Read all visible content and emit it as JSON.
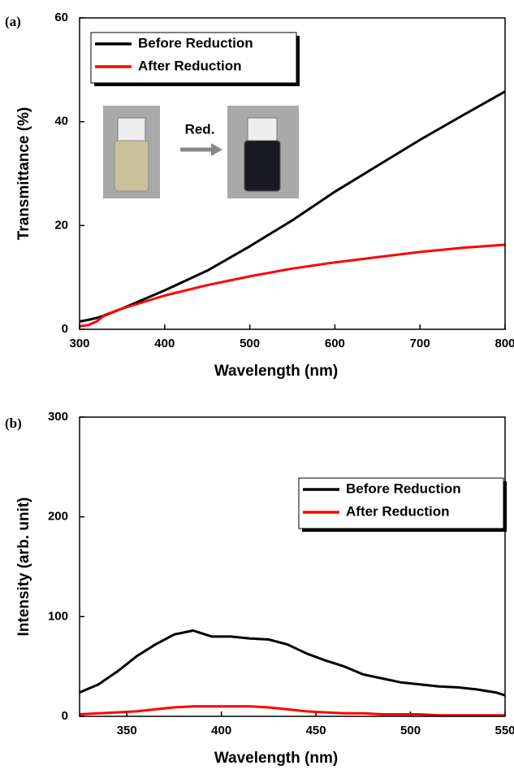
{
  "chart_data": [
    {
      "type": "line",
      "panel": "(a)",
      "xlabel": "Wavelength (nm)",
      "ylabel": "Transmittance (%)",
      "annotation": "Red.",
      "x": [
        300,
        310,
        320,
        330,
        350,
        400,
        450,
        500,
        550,
        600,
        650,
        700,
        750,
        800
      ],
      "series": [
        {
          "name": "Before Reduction",
          "color": "#000000",
          "values": [
            1.5,
            1.8,
            2.2,
            2.7,
            4,
            7.5,
            11.3,
            16,
            21,
            26.5,
            31.5,
            36.5,
            41.2,
            45.8
          ]
        },
        {
          "name": "After Reduction",
          "color": "#ff0000",
          "values": [
            0.6,
            0.8,
            1.5,
            2.8,
            4,
            6.5,
            8.5,
            10.2,
            11.7,
            12.9,
            13.9,
            14.9,
            15.7,
            16.3
          ]
        }
      ],
      "xlim": [
        300,
        800
      ],
      "xticks": [
        300,
        400,
        500,
        600,
        700,
        800
      ],
      "ylim": [
        0,
        60
      ],
      "yticks": [
        0,
        20,
        40,
        60
      ],
      "legend": "upper left",
      "grid": false
    },
    {
      "type": "line",
      "panel": "(b)",
      "xlabel": "Wavelength (nm)",
      "ylabel": "Intensity (arb. unit)",
      "x": [
        325,
        335,
        345,
        355,
        365,
        375,
        385,
        395,
        405,
        415,
        425,
        435,
        445,
        455,
        465,
        475,
        485,
        495,
        505,
        515,
        525,
        535,
        545,
        550
      ],
      "series": [
        {
          "name": "Before Reduction",
          "color": "#000000",
          "values": [
            24,
            32,
            45,
            60,
            72,
            82,
            86,
            80,
            80,
            78,
            77,
            72,
            63,
            56,
            50,
            42,
            38,
            34,
            32,
            30,
            29,
            27,
            24,
            21
          ]
        },
        {
          "name": "After Reduction",
          "color": "#ff0000",
          "values": [
            2,
            3,
            4,
            5,
            7,
            9,
            10,
            10,
            10,
            10,
            9,
            7,
            5,
            4,
            3,
            3,
            2,
            2,
            2,
            1,
            1,
            1,
            1,
            1
          ]
        }
      ],
      "xlim": [
        325,
        550
      ],
      "xticks": [
        350,
        400,
        450,
        500,
        550
      ],
      "ylim": [
        0,
        300
      ],
      "yticks": [
        0,
        100,
        200,
        300
      ],
      "legend": "upper right",
      "grid": false
    }
  ]
}
